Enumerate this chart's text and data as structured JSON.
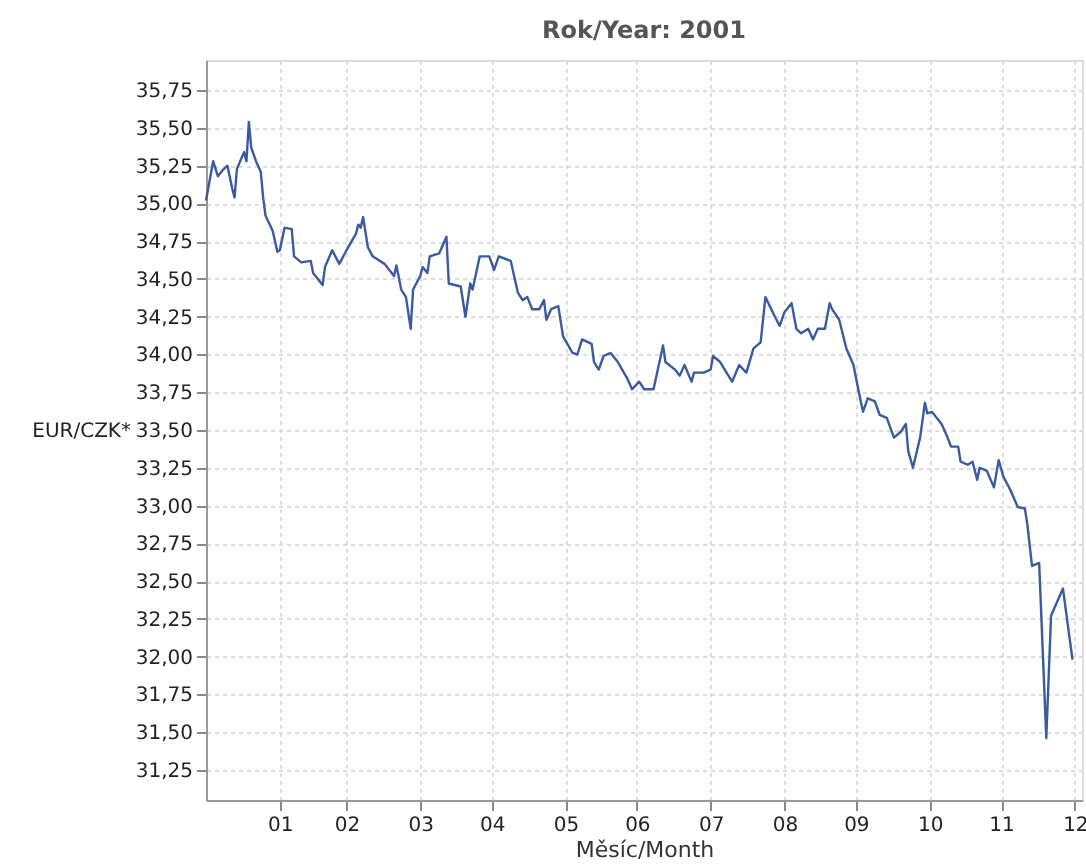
{
  "chart_data": {
    "type": "line",
    "title": "Rok/Year: 2001",
    "xlabel": "Měsíc/Month",
    "ylabel": "EUR/CZK*",
    "x": [
      "2001-01-01",
      "2001-01-04",
      "2001-01-06",
      "2001-01-08",
      "2001-01-10",
      "2001-01-12",
      "2001-01-13",
      "2001-01-14",
      "2001-01-17",
      "2001-01-18",
      "2001-01-19",
      "2001-01-20",
      "2001-01-22",
      "2001-01-24",
      "2001-01-25",
      "2001-01-26",
      "2001-01-29",
      "2001-01-31",
      "2001-02-01",
      "2001-02-03",
      "2001-02-06",
      "2001-02-07",
      "2001-02-10",
      "2001-02-14",
      "2001-02-15",
      "2001-02-19",
      "2001-02-20",
      "2001-02-23",
      "2001-02-26",
      "2001-03-01",
      "2001-03-05",
      "2001-03-06",
      "2001-03-07",
      "2001-03-08",
      "2001-03-10",
      "2001-03-12",
      "2001-03-17",
      "2001-03-21",
      "2001-03-22",
      "2001-03-24",
      "2001-03-26",
      "2001-03-28",
      "2001-03-29",
      "2001-04-01",
      "2001-04-02",
      "2001-04-04",
      "2001-04-05",
      "2001-04-09",
      "2001-04-12",
      "2001-04-13",
      "2001-04-18",
      "2001-04-20",
      "2001-04-22",
      "2001-04-23",
      "2001-04-26",
      "2001-04-30",
      "2001-05-02",
      "2001-05-04",
      "2001-05-09",
      "2001-05-12",
      "2001-05-14",
      "2001-05-16",
      "2001-05-18",
      "2001-05-21",
      "2001-05-23",
      "2001-05-24",
      "2001-05-26",
      "2001-05-29",
      "2001-05-31",
      "2001-06-04",
      "2001-06-06",
      "2001-06-08",
      "2001-06-12",
      "2001-06-13",
      "2001-06-15",
      "2001-06-17",
      "2001-06-20",
      "2001-06-23",
      "2001-06-27",
      "2001-06-29",
      "2001-07-02",
      "2001-07-04",
      "2001-07-08",
      "2001-07-12",
      "2001-07-13",
      "2001-07-17",
      "2001-07-19",
      "2001-07-21",
      "2001-07-24",
      "2001-07-25",
      "2001-07-29",
      "2001-08-01",
      "2001-08-02",
      "2001-08-05",
      "2001-08-10",
      "2001-08-13",
      "2001-08-16",
      "2001-08-19",
      "2001-08-22",
      "2001-08-24",
      "2001-08-28",
      "2001-08-30",
      "2001-09-01",
      "2001-09-04",
      "2001-09-06",
      "2001-09-08",
      "2001-09-11",
      "2001-09-13",
      "2001-09-15",
      "2001-09-18",
      "2001-09-20",
      "2001-09-21",
      "2001-09-24",
      "2001-09-27",
      "2001-09-30",
      "2001-10-02",
      "2001-10-04",
      "2001-10-06",
      "2001-10-09",
      "2001-10-11",
      "2001-10-14",
      "2001-10-17",
      "2001-10-20",
      "2001-10-22",
      "2001-10-23",
      "2001-10-25",
      "2001-10-28",
      "2001-10-30",
      "2001-10-31",
      "2001-11-02",
      "2001-11-06",
      "2001-11-08",
      "2001-11-10",
      "2001-11-13",
      "2001-11-14",
      "2001-11-17",
      "2001-11-19",
      "2001-11-21",
      "2001-11-22",
      "2001-11-25",
      "2001-11-28",
      "2001-11-30",
      "2001-12-02",
      "2001-12-05",
      "2001-12-08",
      "2001-12-11",
      "2001-12-12",
      "2001-12-14",
      "2001-12-17",
      "2001-12-20",
      "2001-12-22",
      "2001-12-27",
      "2001-12-31"
    ],
    "series": [
      {
        "color": "#3a5ba0",
        "values": [
          35.02,
          35.28,
          35.18,
          35.22,
          35.25,
          35.1,
          35.04,
          35.23,
          35.34,
          35.28,
          35.54,
          35.37,
          35.28,
          35.21,
          35.04,
          34.92,
          34.82,
          34.68,
          34.69,
          34.84,
          34.83,
          34.65,
          34.61,
          34.62,
          34.54,
          34.46,
          34.58,
          34.69,
          34.6,
          34.69,
          34.8,
          34.86,
          34.84,
          34.91,
          34.71,
          34.65,
          34.6,
          34.52,
          34.59,
          34.43,
          34.38,
          34.17,
          34.43,
          34.52,
          34.58,
          34.54,
          34.65,
          34.67,
          34.78,
          34.47,
          34.45,
          34.25,
          34.47,
          34.43,
          34.65,
          34.65,
          34.56,
          34.65,
          34.62,
          34.41,
          34.36,
          34.38,
          34.3,
          34.3,
          34.36,
          34.23,
          34.3,
          34.32,
          34.12,
          34.01,
          34.0,
          34.1,
          34.07,
          33.95,
          33.9,
          33.99,
          34.01,
          33.95,
          33.84,
          33.77,
          33.82,
          33.77,
          33.77,
          34.06,
          33.95,
          33.9,
          33.86,
          33.93,
          33.82,
          33.88,
          33.88,
          33.9,
          33.99,
          33.95,
          33.82,
          33.93,
          33.88,
          34.04,
          34.08,
          34.38,
          34.25,
          34.19,
          34.28,
          34.34,
          34.17,
          34.14,
          34.17,
          34.1,
          34.17,
          34.17,
          34.34,
          34.3,
          34.23,
          34.04,
          33.93,
          33.77,
          33.62,
          33.71,
          33.69,
          33.6,
          33.58,
          33.45,
          33.49,
          33.54,
          33.36,
          33.25,
          33.45,
          33.68,
          33.61,
          33.62,
          33.54,
          33.47,
          33.39,
          33.39,
          33.29,
          33.27,
          33.29,
          33.17,
          33.25,
          33.23,
          33.12,
          33.3,
          33.19,
          33.1,
          32.99,
          32.98,
          32.88,
          32.6,
          32.62,
          31.46,
          32.27,
          32.45,
          31.98
        ]
      }
    ],
    "xlim": [
      "2001-01-01",
      "2002-01-04"
    ],
    "xticks": [
      {
        "value": "2001-02-01",
        "label": "01"
      },
      {
        "value": "2001-03-01",
        "label": "02"
      },
      {
        "value": "2001-04-01",
        "label": "03"
      },
      {
        "value": "2001-05-01",
        "label": "04"
      },
      {
        "value": "2001-06-01",
        "label": "05"
      },
      {
        "value": "2001-07-01",
        "label": "06"
      },
      {
        "value": "2001-08-01",
        "label": "07"
      },
      {
        "value": "2001-09-01",
        "label": "08"
      },
      {
        "value": "2001-10-01",
        "label": "09"
      },
      {
        "value": "2001-11-01",
        "label": "10"
      },
      {
        "value": "2001-12-01",
        "label": "11"
      },
      {
        "value": "2002-01-01",
        "label": "12"
      }
    ],
    "ylim": [
      31.05,
      35.95
    ],
    "yticks": [
      {
        "value": 31.25,
        "label": "31,25"
      },
      {
        "value": 31.5,
        "label": "31,50"
      },
      {
        "value": 31.75,
        "label": "31,75"
      },
      {
        "value": 32.0,
        "label": "32,00"
      },
      {
        "value": 32.25,
        "label": "32,25"
      },
      {
        "value": 32.5,
        "label": "32,50"
      },
      {
        "value": 32.75,
        "label": "32,75"
      },
      {
        "value": 33.0,
        "label": "33,00"
      },
      {
        "value": 33.25,
        "label": "33,25"
      },
      {
        "value": 33.5,
        "label": "33,50"
      },
      {
        "value": 33.75,
        "label": "33,75"
      },
      {
        "value": 34.0,
        "label": "34,00"
      },
      {
        "value": 34.25,
        "label": "34,25"
      },
      {
        "value": 34.5,
        "label": "34,50"
      },
      {
        "value": 34.75,
        "label": "34,75"
      },
      {
        "value": 35.0,
        "label": "35,00"
      },
      {
        "value": 35.25,
        "label": "35,25"
      },
      {
        "value": 35.5,
        "label": "35,50"
      },
      {
        "value": 35.75,
        "label": "35,75"
      }
    ],
    "grid": true,
    "marker": "none",
    "line_style": "solid"
  }
}
